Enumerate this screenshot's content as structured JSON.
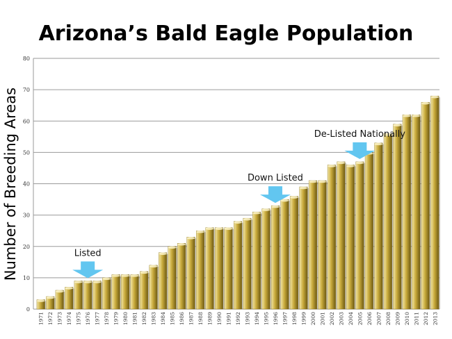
{
  "chart_data": {
    "type": "bar",
    "title": "Arizona’s Bald Eagle Population",
    "ylabel": "Number of Breeding Areas",
    "xlabel": "",
    "ylim": [
      0,
      80
    ],
    "yticks": [
      0,
      10,
      20,
      30,
      40,
      50,
      60,
      70,
      80
    ],
    "grid": true,
    "categories": [
      "1971",
      "1972",
      "1973",
      "1974",
      "1975",
      "1976",
      "1977",
      "1978",
      "1979",
      "1980",
      "1981",
      "1982",
      "1983",
      "1984",
      "1985",
      "1986",
      "1987",
      "1988",
      "1989",
      "1990",
      "1991",
      "1992",
      "1993",
      "1994",
      "1995",
      "1996",
      "1997",
      "1998",
      "1999",
      "2000",
      "2001",
      "2002",
      "2003",
      "2004",
      "2005",
      "2006",
      "2007",
      "2008",
      "2009",
      "2010",
      "2011",
      "2012",
      "2013"
    ],
    "values": [
      3,
      4,
      6,
      7,
      9,
      9,
      9,
      10,
      11,
      11,
      11,
      12,
      14,
      18,
      20,
      21,
      23,
      25,
      26,
      26,
      26,
      28,
      29,
      31,
      32,
      33,
      35,
      36,
      39,
      41,
      41,
      46,
      47,
      46,
      47,
      50,
      53,
      56,
      59,
      62,
      62,
      66,
      68
    ],
    "annotations": [
      {
        "text": "Listed",
        "category": "1976"
      },
      {
        "text": "Down Listed",
        "category": "1996"
      },
      {
        "text": "De-Listed Nationally",
        "category": "2005"
      }
    ],
    "colors": {
      "bar_light": "#f3e6a6",
      "bar_mid": "#c9ab3c",
      "bar_dark": "#6e5a12",
      "arrow": "#62c6f0",
      "grid": "#9a9a9a"
    }
  }
}
